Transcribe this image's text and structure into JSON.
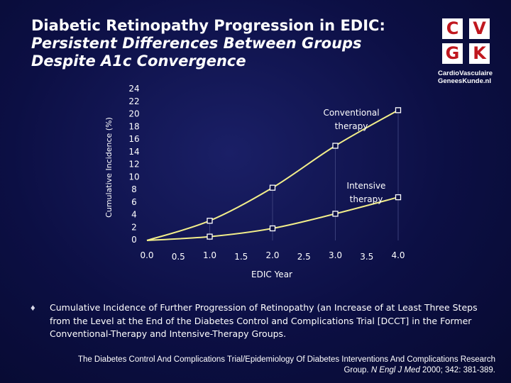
{
  "title": {
    "line1": "Diabetic Retinopathy Progression in EDIC:",
    "line2": "Persistent Differences Between Groups",
    "line3": "Despite A1c Convergence"
  },
  "logo": {
    "letters": [
      "C",
      "V",
      "G",
      "K"
    ],
    "line1": "CardioVasculaire",
    "line2": "GeneesKunde.nl",
    "accent_color": "#c0171e"
  },
  "chart_data": {
    "type": "line",
    "xlabel": "EDIC Year",
    "ylabel": "Cumulative Incidence (%)",
    "xlim": [
      0,
      4
    ],
    "ylim": [
      0,
      24
    ],
    "x_ticks": [
      "0.0",
      "0.5",
      "1.0",
      "1.5",
      "2.0",
      "2.5",
      "3.0",
      "3.5",
      "4.0"
    ],
    "y_ticks": [
      "24",
      "22",
      "20",
      "18",
      "16",
      "14",
      "12",
      "10",
      "8",
      "6",
      "4",
      "2",
      "0"
    ],
    "line_color": "#f2ee8a",
    "marker": "open-square",
    "series": [
      {
        "name": "Conventional therapy",
        "label_lines": [
          "Conventional",
          "therapy"
        ],
        "x": [
          0,
          1,
          2,
          3,
          4
        ],
        "y": [
          0,
          3.1,
          8.3,
          14.9,
          20.5
        ]
      },
      {
        "name": "Intensive therapy",
        "label_lines": [
          "Intensive",
          "therapy"
        ],
        "x": [
          0,
          1,
          2,
          3,
          4
        ],
        "y": [
          0,
          0.6,
          1.9,
          4.2,
          6.8
        ]
      }
    ]
  },
  "bullet_glyph": "♦",
  "caption": "Cumulative Incidence of Further Progression of Retinopathy (an Increase of at Least Three Steps from the Level at the End of the Diabetes Control and Complications Trial [DCCT] in the Former Conventional-Therapy and Intensive-Therapy Groups.",
  "citation": {
    "line1": "The Diabetes Control And Complications Trial/Epidemiology Of Diabetes Interventions And Complications Research",
    "line2_prefix": "Group. ",
    "journal": "N Engl J Med",
    "line2_suffix": " 2000; 342: 381-389."
  }
}
